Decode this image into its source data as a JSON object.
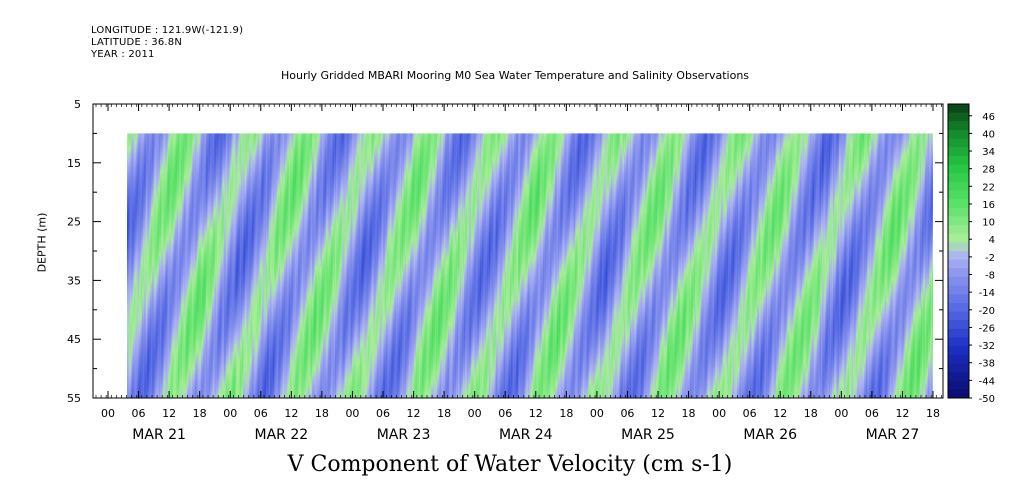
{
  "header": {
    "longitude": "LONGITUDE : 121.9W(-121.9)",
    "latitude": "LATITUDE : 36.8N",
    "year": "YEAR : 2011"
  },
  "chart_data": {
    "type": "heatmap",
    "title": "Hourly Gridded MBARI Mooring M0 Sea Water Temperature and Salinity Observations",
    "xlabel": "V Component of Water Velocity (cm s-1)",
    "ylabel": "DEPTH (m)",
    "x_hour_ticks": [
      "00",
      "06",
      "12",
      "18",
      "00",
      "06",
      "12",
      "18",
      "00",
      "06",
      "12",
      "18",
      "00",
      "06",
      "12",
      "18",
      "00",
      "06",
      "12",
      "18",
      "00",
      "06",
      "12",
      "18",
      "00",
      "06",
      "12",
      "18"
    ],
    "x_day_labels": [
      "MAR 21",
      "MAR 22",
      "MAR 23",
      "MAR 24",
      "MAR 25",
      "MAR 26",
      "MAR 27"
    ],
    "y_ticks": [
      5,
      15,
      25,
      35,
      45,
      55
    ],
    "ylim": [
      55,
      5
    ],
    "data_depth_range": [
      10,
      55
    ],
    "colorbar_ticks": [
      46,
      40,
      34,
      28,
      22,
      16,
      10,
      4,
      -2,
      -8,
      -14,
      -20,
      -26,
      -32,
      -38,
      -44,
      -50
    ],
    "colorbar_range": [
      -50,
      50
    ],
    "colors": {
      "strong_positive": "#0a3d14",
      "positive": "#2fd24a",
      "weak_positive": "#a8ee98",
      "weak_negative": "#a9b0f4",
      "negative": "#5f73e6",
      "strong_negative": "#0a0a6e"
    }
  }
}
